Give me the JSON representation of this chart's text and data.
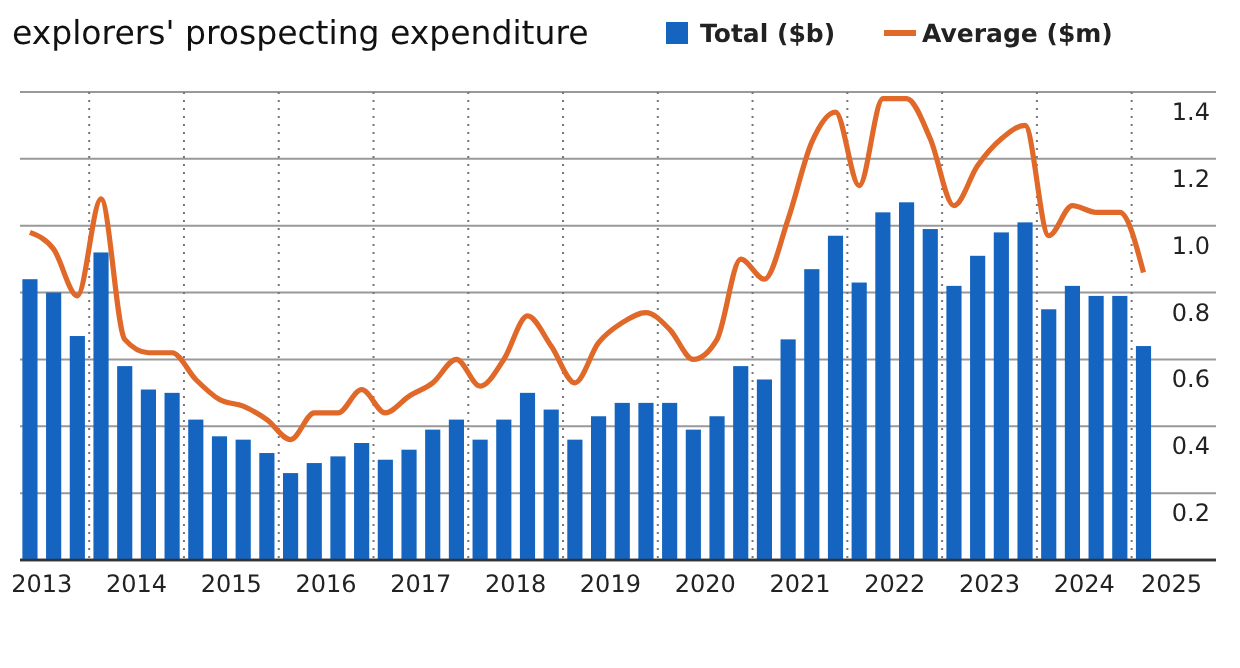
{
  "chart_data": {
    "type": "bar",
    "title": "explorers' prospecting expenditure",
    "x": [
      2013.375,
      2013.625,
      2013.875,
      2014.125,
      2014.375,
      2014.625,
      2014.875,
      2015.125,
      2015.375,
      2015.625,
      2015.875,
      2016.125,
      2016.375,
      2016.625,
      2016.875,
      2017.125,
      2017.375,
      2017.625,
      2017.875,
      2018.125,
      2018.375,
      2018.625,
      2018.875,
      2019.125,
      2019.375,
      2019.625,
      2019.875,
      2020.125,
      2020.375,
      2020.625,
      2020.875,
      2021.125,
      2021.375,
      2021.625,
      2021.875,
      2022.125,
      2022.375,
      2022.625,
      2022.875,
      2023.125,
      2023.375,
      2023.625,
      2023.875,
      2024.125,
      2024.375,
      2024.625,
      2024.875,
      2025.125
    ],
    "series": [
      {
        "name": "Total ($b)",
        "color": "#1565c0",
        "values": [
          0.84,
          0.8,
          0.67,
          0.92,
          0.58,
          0.51,
          0.5,
          0.42,
          0.37,
          0.36,
          0.32,
          0.26,
          0.29,
          0.31,
          0.35,
          0.3,
          0.33,
          0.39,
          0.42,
          0.36,
          0.42,
          0.5,
          0.45,
          0.36,
          0.43,
          0.47,
          0.47,
          0.47,
          0.39,
          0.43,
          0.58,
          0.54,
          0.66,
          0.87,
          0.97,
          0.83,
          1.04,
          1.07,
          0.99,
          0.82,
          0.91,
          0.98,
          1.01,
          0.75,
          0.82,
          0.79,
          0.79,
          0.64
        ]
      },
      {
        "name": "Average ($m)",
        "type": "line",
        "color": "#e0692a",
        "values": [
          0.98,
          0.93,
          0.79,
          1.08,
          0.66,
          0.62,
          0.62,
          0.54,
          0.48,
          0.46,
          0.42,
          0.36,
          0.44,
          0.44,
          0.51,
          0.44,
          0.49,
          0.53,
          0.6,
          0.52,
          0.6,
          0.73,
          0.64,
          0.53,
          0.65,
          0.71,
          0.74,
          0.69,
          0.6,
          0.66,
          0.9,
          0.84,
          1.02,
          1.25,
          1.34,
          1.12,
          1.38,
          1.38,
          1.26,
          1.06,
          1.18,
          1.26,
          1.3,
          0.97,
          1.06,
          1.04,
          1.04,
          0.86
        ]
      }
    ],
    "xlim": [
      2013.27,
      2025.89
    ],
    "xticks": [
      {
        "value": 2013.5,
        "label": "2013"
      },
      {
        "value": 2014.5,
        "label": "2014"
      },
      {
        "value": 2015.5,
        "label": "2015"
      },
      {
        "value": 2016.5,
        "label": "2016"
      },
      {
        "value": 2017.5,
        "label": "2017"
      },
      {
        "value": 2018.5,
        "label": "2018"
      },
      {
        "value": 2019.5,
        "label": "2019"
      },
      {
        "value": 2020.5,
        "label": "2020"
      },
      {
        "value": 2021.5,
        "label": "2021"
      },
      {
        "value": 2022.5,
        "label": "2022"
      },
      {
        "value": 2023.5,
        "label": "2023"
      },
      {
        "value": 2024.5,
        "label": "2024"
      },
      {
        "value": 2025.42,
        "label": "2025"
      },
      {
        "value": 2014,
        "label": null
      },
      {
        "value": 2015,
        "label": null
      },
      {
        "value": 2016,
        "label": null
      },
      {
        "value": 2017,
        "label": null
      },
      {
        "value": 2018,
        "label": null
      },
      {
        "value": 2019,
        "label": null
      },
      {
        "value": 2020,
        "label": null
      },
      {
        "value": 2021,
        "label": null
      },
      {
        "value": 2022,
        "label": null
      },
      {
        "value": 2023,
        "label": null
      },
      {
        "value": 2024,
        "label": null
      },
      {
        "value": 2025,
        "label": null
      }
    ],
    "ylim": [
      0,
      1.4
    ],
    "yticks": [
      {
        "value": 0,
        "label": null
      },
      0.2,
      0.4,
      0.6,
      0.8,
      {
        "value": 1,
        "label": "1.0"
      },
      1.2,
      1.4
    ],
    "grid": true,
    "legend": "top right"
  }
}
